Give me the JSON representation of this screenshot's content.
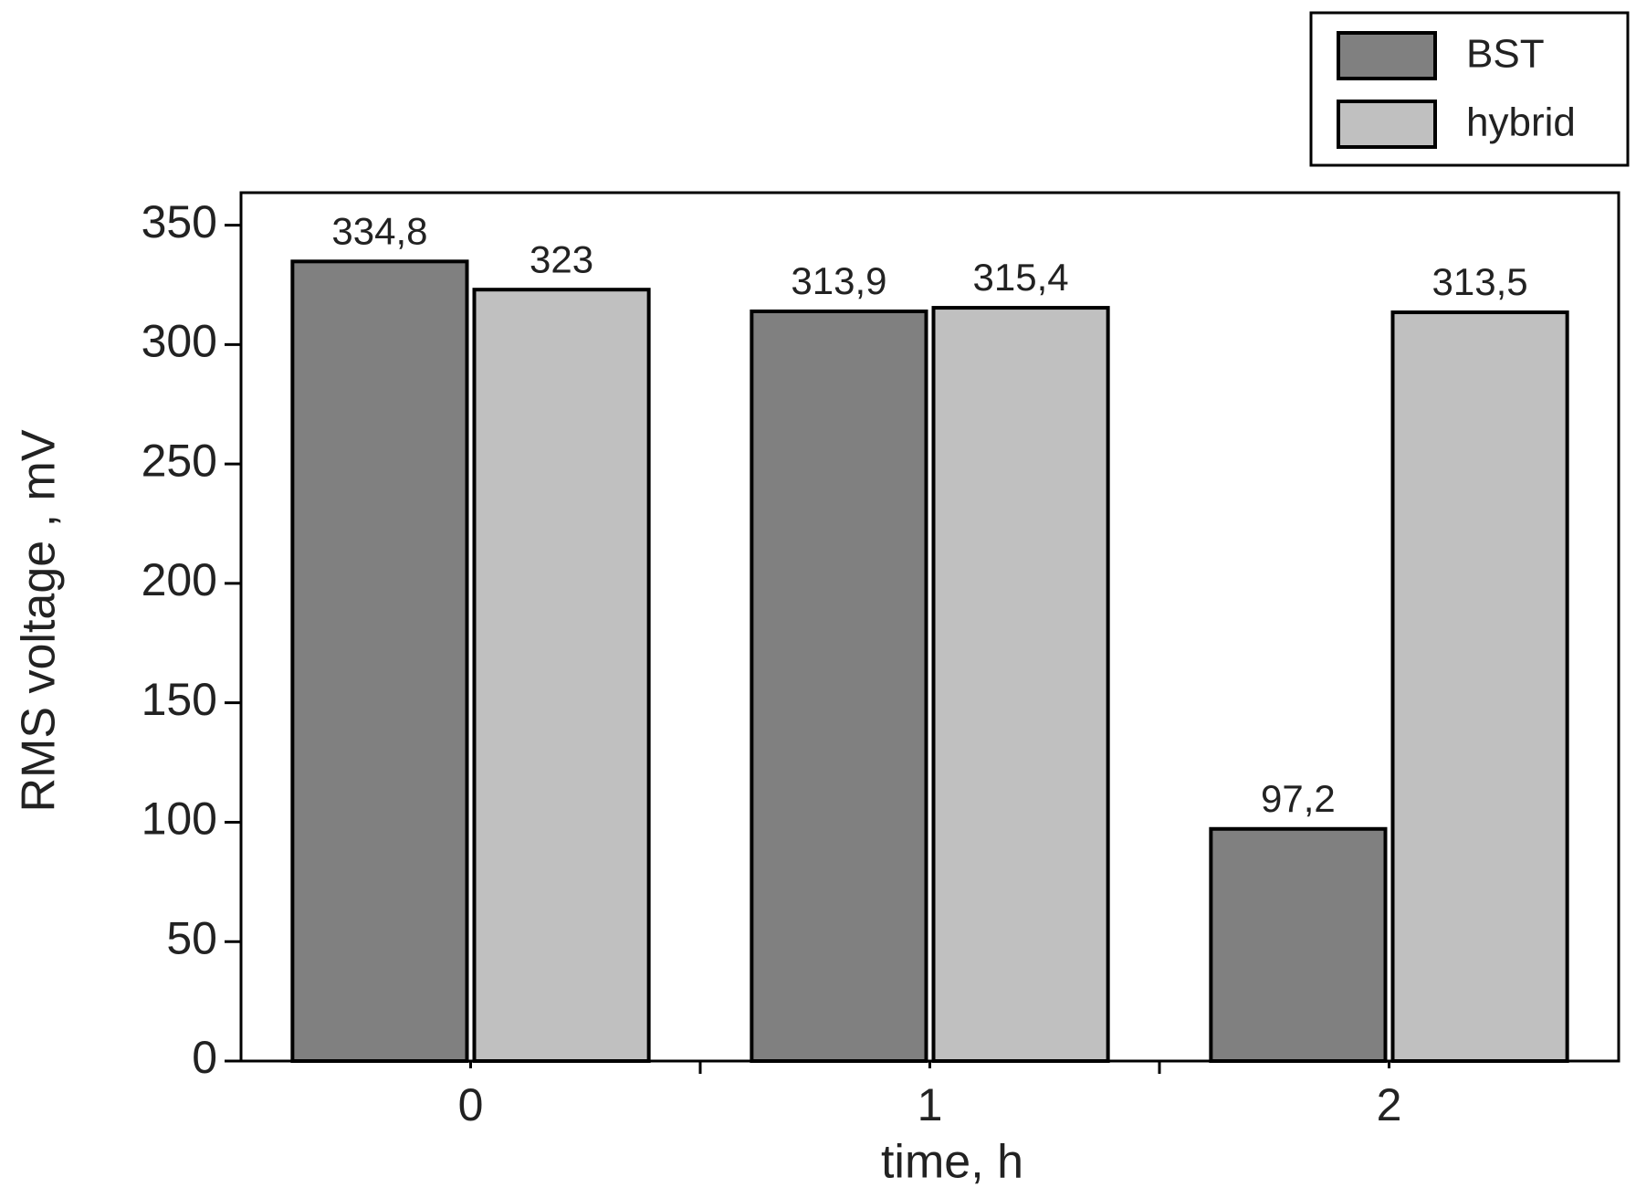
{
  "chart_data": {
    "type": "bar",
    "x_label": "time, h",
    "y_label": "RMS voltage , mV",
    "categories": [
      "0",
      "1",
      "2"
    ],
    "series": [
      {
        "name": "BST",
        "color": "#808080",
        "values": [
          334.8,
          313.9,
          97.2
        ],
        "value_labels": [
          "334,8",
          "313,9",
          "97,2"
        ]
      },
      {
        "name": "hybrid",
        "color": "#c0c0c0",
        "values": [
          323,
          315.4,
          313.5
        ],
        "value_labels": [
          "323",
          "315,4",
          "313,5"
        ]
      }
    ],
    "ylim": [
      0,
      363.6
    ],
    "yticks": [
      0,
      50,
      100,
      150,
      200,
      250,
      300,
      350
    ],
    "legend": "top-right"
  }
}
